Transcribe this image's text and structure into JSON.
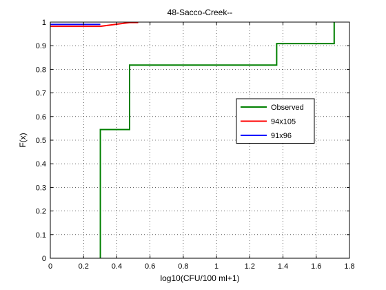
{
  "chart_data": {
    "type": "line",
    "title": "48-Sacco-Creek--",
    "xlabel": "log10(CFU/100 ml+1)",
    "ylabel": "F(x)",
    "xlim": [
      0,
      1.8
    ],
    "ylim": [
      0,
      1
    ],
    "xticks": [
      0,
      0.2,
      0.4,
      0.6,
      0.8,
      1,
      1.2,
      1.4,
      1.6,
      1.8
    ],
    "xtick_labels": [
      "0",
      "0.2",
      "0.4",
      "0.6",
      "0.8",
      "1",
      "1.2",
      "1.4",
      "1.6",
      "1.8"
    ],
    "yticks": [
      0,
      0.1,
      0.2,
      0.3,
      0.4,
      0.5,
      0.6,
      0.7,
      0.8,
      0.9,
      1
    ],
    "ytick_labels": [
      "0",
      "0.1",
      "0.2",
      "0.3",
      "0.4",
      "0.5",
      "0.6",
      "0.7",
      "0.8",
      "0.9",
      "1"
    ],
    "grid": true,
    "legend_position": "center-right",
    "series": [
      {
        "name": "Observed",
        "color": "#008000",
        "x": [
          0.301,
          0.301,
          0.477,
          0.477,
          1.362,
          1.362,
          1.708,
          1.708
        ],
        "y": [
          0,
          0.545,
          0.545,
          0.818,
          0.818,
          0.909,
          0.909,
          1.0
        ]
      },
      {
        "name": "94x105",
        "color": "#ff0000",
        "x": [
          0,
          0.301,
          0.477,
          0.529
        ],
        "y": [
          0.982,
          0.982,
          0.998,
          0.998
        ]
      },
      {
        "name": "91x96",
        "color": "#0000ff",
        "x": [
          0,
          0.301
        ],
        "y": [
          0.99,
          0.99
        ]
      }
    ]
  }
}
